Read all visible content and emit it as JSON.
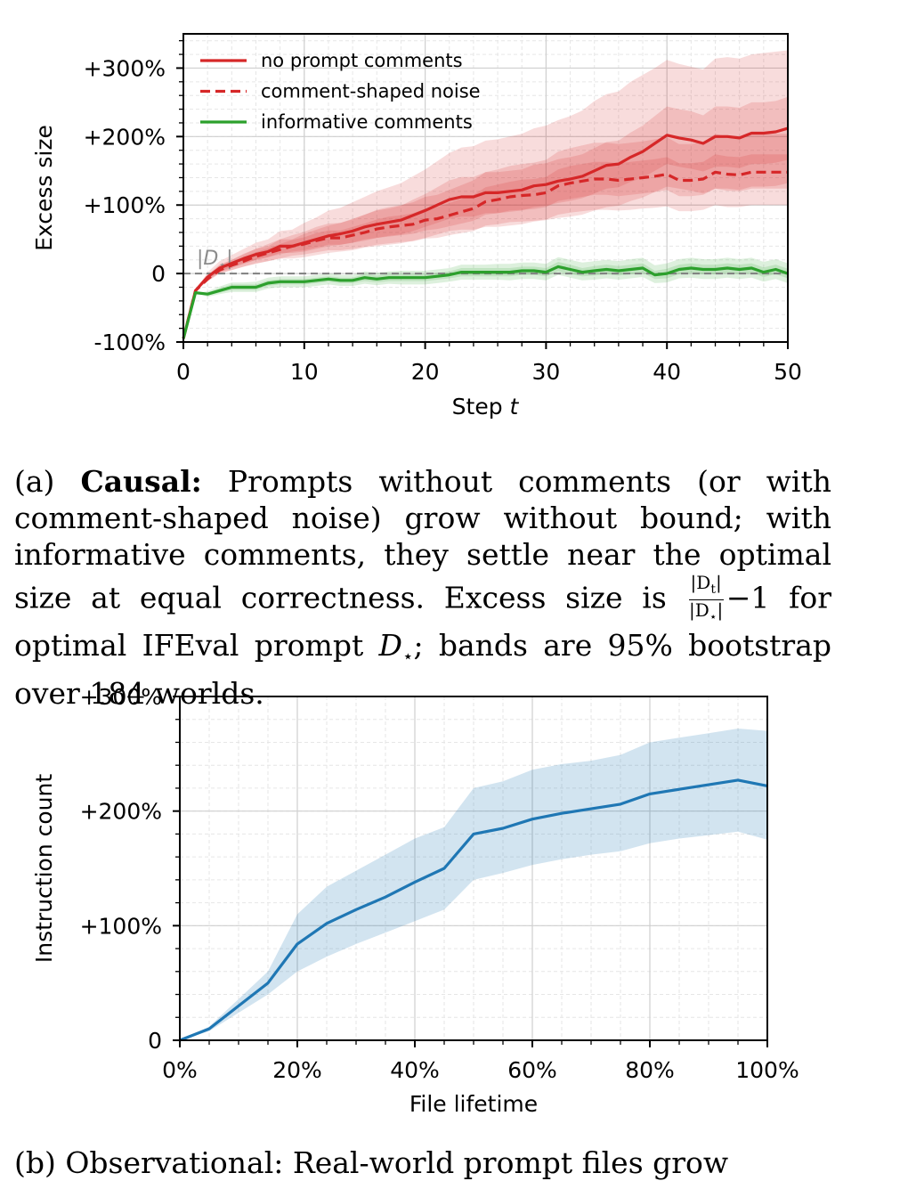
{
  "chart_data": [
    {
      "type": "line",
      "xlabel": "Step",
      "xlabel_var": "t",
      "ylabel": "Excess size",
      "xlim": [
        0,
        50
      ],
      "ylim": [
        -100,
        350
      ],
      "x_ticks": [
        0,
        10,
        20,
        30,
        40,
        50
      ],
      "x_tick_labels": [
        "0",
        "10",
        "20",
        "30",
        "40",
        "50"
      ],
      "y_ticks": [
        -100,
        0,
        100,
        200,
        300
      ],
      "y_tick_labels": [
        "-100%",
        "0",
        "+100%",
        "+200%",
        "+300%"
      ],
      "grid": true,
      "legend_position": "top-left",
      "reference_line": {
        "y": 0,
        "label_text": "|D",
        "label_sub": "⋆",
        "label_close": "|"
      },
      "x": [
        0,
        1,
        2,
        3,
        4,
        5,
        6,
        7,
        8,
        9,
        10,
        11,
        12,
        13,
        14,
        15,
        16,
        17,
        18,
        19,
        20,
        21,
        22,
        23,
        24,
        25,
        26,
        27,
        28,
        29,
        30,
        31,
        32,
        33,
        34,
        35,
        36,
        37,
        38,
        39,
        40,
        41,
        42,
        43,
        44,
        45,
        46,
        47,
        48,
        49,
        50
      ],
      "series": [
        {
          "name": "no prompt comments",
          "color": "#d62728",
          "style": "solid",
          "values": [
            -95,
            -25,
            -5,
            8,
            15,
            22,
            28,
            32,
            40,
            40,
            45,
            50,
            55,
            58,
            62,
            68,
            72,
            75,
            78,
            85,
            92,
            100,
            108,
            112,
            112,
            118,
            118,
            120,
            122,
            128,
            130,
            135,
            138,
            142,
            150,
            158,
            160,
            170,
            178,
            190,
            202,
            198,
            195,
            190,
            200,
            200,
            198,
            205,
            205,
            207,
            212
          ],
          "band_inner": [
            [
              -95,
              -25,
              -8,
              3,
              10,
              15,
              20,
              24,
              30,
              30,
              32,
              36,
              40,
              42,
              45,
              50,
              52,
              55,
              57,
              62,
              68,
              74,
              80,
              83,
              83,
              88,
              88,
              90,
              92,
              97,
              99,
              103,
              106,
              110,
              117,
              124,
              126,
              134,
              140,
              150,
              160,
              156,
              153,
              149,
              156,
              156,
              154,
              160,
              160,
              162,
              166
            ],
            [
              -95,
              -25,
              -2,
              13,
              20,
              29,
              36,
              40,
              50,
              50,
              58,
              64,
              70,
              74,
              79,
              86,
              92,
              95,
              99,
              108,
              116,
              126,
              136,
              141,
              141,
              148,
              148,
              150,
              152,
              159,
              161,
              167,
              170,
              174,
              183,
              192,
              194,
              206,
              216,
              230,
              244,
              240,
              237,
              231,
              244,
              244,
              242,
              250,
              250,
              252,
              258
            ]
          ],
          "band_outer": [
            [
              -95,
              -25,
              -10,
              0,
              5,
              10,
              14,
              18,
              22,
              22,
              24,
              27,
              30,
              32,
              34,
              38,
              40,
              42,
              44,
              48,
              52,
              57,
              62,
              64,
              64,
              68,
              68,
              70,
              72,
              76,
              78,
              81,
              83,
              86,
              92,
              97,
              99,
              106,
              111,
              119,
              127,
              124,
              121,
              117,
              124,
              124,
              122,
              127,
              127,
              128,
              132
            ],
            [
              -95,
              -25,
              2,
              18,
              27,
              36,
              45,
              50,
              62,
              64,
              74,
              82,
              92,
              96,
              104,
              112,
              120,
              126,
              132,
              142,
              152,
              164,
              176,
              184,
              186,
              194,
              196,
              200,
              204,
              212,
              216,
              224,
              230,
              238,
              252,
              262,
              266,
              280,
              290,
              300,
              312,
              306,
              302,
              298,
              314,
              316,
              314,
              320,
              322,
              324,
              326
            ]
          ]
        },
        {
          "name": "comment-shaped noise",
          "color": "#d62728",
          "style": "dashed",
          "values": [
            -95,
            -25,
            -8,
            5,
            12,
            18,
            25,
            30,
            35,
            40,
            43,
            48,
            52,
            52,
            56,
            60,
            65,
            68,
            70,
            72,
            78,
            80,
            85,
            90,
            95,
            105,
            108,
            112,
            114,
            115,
            118,
            128,
            132,
            135,
            138,
            138,
            136,
            138,
            140,
            142,
            145,
            136,
            136,
            138,
            148,
            145,
            144,
            148,
            148,
            148,
            148
          ],
          "band_inner": [
            [
              -95,
              -25,
              -10,
              2,
              8,
              14,
              20,
              24,
              28,
              32,
              34,
              38,
              42,
              42,
              45,
              48,
              52,
              54,
              56,
              58,
              63,
              65,
              69,
              73,
              77,
              86,
              88,
              92,
              93,
              94,
              97,
              106,
              109,
              112,
              115,
              115,
              113,
              115,
              117,
              119,
              122,
              113,
              113,
              115,
              124,
              121,
              120,
              124,
              124,
              124,
              124
            ],
            [
              -95,
              -25,
              -5,
              9,
              17,
              23,
              31,
              37,
              43,
              49,
              53,
              59,
              63,
              63,
              68,
              73,
              79,
              83,
              85,
              88,
              95,
              97,
              103,
              109,
              115,
              126,
              130,
              134,
              137,
              138,
              141,
              152,
              157,
              160,
              163,
              163,
              161,
              163,
              165,
              167,
              170,
              161,
              161,
              163,
              174,
              171,
              170,
              174,
              174,
              174,
              174
            ]
          ],
          "band_outer": [
            [
              -95,
              -25,
              -12,
              0,
              5,
              10,
              15,
              18,
              22,
              26,
              28,
              31,
              34,
              34,
              36,
              39,
              42,
              44,
              46,
              47,
              51,
              52,
              56,
              59,
              62,
              70,
              72,
              75,
              76,
              77,
              79,
              86,
              89,
              91,
              93,
              93,
              92,
              93,
              95,
              96,
              98,
              91,
              91,
              93,
              100,
              97,
              97,
              100,
              100,
              100,
              100
            ],
            [
              -95,
              -25,
              -3,
              12,
              20,
              28,
              36,
              43,
              50,
              56,
              61,
              68,
              73,
              74,
              80,
              86,
              93,
              97,
              100,
              104,
              112,
              115,
              122,
              129,
              136,
              148,
              152,
              157,
              160,
              162,
              166,
              178,
              183,
              187,
              191,
              191,
              189,
              191,
              193,
              196,
              199,
              189,
              189,
              192,
              204,
              200,
              199,
              204,
              204,
              204,
              204
            ]
          ]
        },
        {
          "name": "informative comments",
          "color": "#2ca02c",
          "style": "solid",
          "values": [
            -95,
            -28,
            -30,
            -25,
            -20,
            -20,
            -20,
            -14,
            -12,
            -12,
            -12,
            -10,
            -8,
            -10,
            -10,
            -6,
            -8,
            -6,
            -6,
            -6,
            -6,
            -4,
            -2,
            2,
            2,
            2,
            2,
            2,
            4,
            4,
            2,
            10,
            6,
            2,
            4,
            6,
            4,
            6,
            8,
            -2,
            0,
            6,
            8,
            6,
            6,
            8,
            6,
            8,
            2,
            6,
            0
          ],
          "band_inner": [
            [
              -95,
              -28,
              -32,
              -28,
              -24,
              -24,
              -24,
              -18,
              -16,
              -16,
              -16,
              -14,
              -12,
              -14,
              -14,
              -11,
              -13,
              -11,
              -11,
              -11,
              -11,
              -9,
              -7,
              -4,
              -4,
              -4,
              -4,
              -4,
              -2,
              -2,
              -4,
              3,
              -1,
              -4,
              -3,
              -1,
              -3,
              -1,
              1,
              -8,
              -7,
              -1,
              1,
              -1,
              -1,
              1,
              -1,
              1,
              -5,
              -1,
              -7
            ],
            [
              -95,
              -28,
              -28,
              -22,
              -16,
              -16,
              -16,
              -10,
              -8,
              -8,
              -8,
              -6,
              -4,
              -6,
              -6,
              -1,
              -3,
              -1,
              -1,
              -1,
              -1,
              1,
              3,
              8,
              8,
              8,
              8,
              8,
              10,
              10,
              8,
              17,
              13,
              8,
              11,
              13,
              11,
              13,
              15,
              4,
              7,
              13,
              15,
              13,
              13,
              15,
              13,
              15,
              9,
              13,
              7
            ]
          ],
          "band_outer": [
            [
              -95,
              -28,
              -34,
              -30,
              -27,
              -27,
              -27,
              -22,
              -20,
              -20,
              -20,
              -18,
              -16,
              -18,
              -18,
              -15,
              -17,
              -15,
              -16,
              -16,
              -16,
              -14,
              -12,
              -9,
              -9,
              -9,
              -9,
              -10,
              -8,
              -8,
              -10,
              -2,
              -6,
              -10,
              -9,
              -7,
              -9,
              -7,
              -5,
              -14,
              -13,
              -7,
              -6,
              -8,
              -8,
              -6,
              -8,
              -6,
              -12,
              -8,
              -14
            ],
            [
              -95,
              -28,
              -26,
              -19,
              -13,
              -13,
              -12,
              -6,
              -4,
              -4,
              -4,
              -2,
              0,
              -2,
              -2,
              3,
              1,
              3,
              4,
              4,
              4,
              6,
              8,
              13,
              13,
              13,
              14,
              14,
              16,
              16,
              14,
              24,
              20,
              16,
              18,
              20,
              18,
              21,
              23,
              12,
              15,
              21,
              23,
              21,
              21,
              23,
              21,
              23,
              17,
              21,
              15
            ]
          ]
        }
      ]
    },
    {
      "type": "line",
      "xlabel": "File lifetime",
      "ylabel": "Instruction count",
      "xlim": [
        0,
        100
      ],
      "ylim": [
        0,
        300
      ],
      "x_ticks": [
        0,
        20,
        40,
        60,
        80,
        100
      ],
      "x_tick_labels": [
        "0%",
        "20%",
        "40%",
        "60%",
        "80%",
        "100%"
      ],
      "y_ticks": [
        0,
        100,
        200,
        300
      ],
      "y_tick_labels": [
        "0",
        "+100%",
        "+200%",
        "+300%"
      ],
      "grid": true,
      "x": [
        0,
        5,
        10,
        15,
        20,
        25,
        30,
        35,
        40,
        45,
        50,
        55,
        60,
        65,
        70,
        75,
        80,
        85,
        90,
        95,
        100
      ],
      "series": [
        {
          "color": "#1f77b4",
          "values": [
            0,
            10,
            30,
            50,
            84,
            102,
            114,
            125,
            138,
            150,
            180,
            185,
            193,
            198,
            202,
            206,
            215,
            219,
            223,
            227,
            222
          ],
          "band": [
            [
              0,
              8,
              24,
              40,
              60,
              73,
              84,
              94,
              104,
              114,
              140,
              146,
              153,
              158,
              162,
              165,
              172,
              176,
              179,
              182,
              175
            ],
            [
              0,
              12,
              36,
              60,
              110,
              134,
              148,
              162,
              176,
              186,
              220,
              226,
              236,
              241,
              244,
              249,
              260,
              264,
              268,
              272,
              270
            ]
          ]
        }
      ]
    }
  ],
  "captions": {
    "a": {
      "tag": "(a) ",
      "bold": "Causal:",
      "text1": " Prompts without comments (or with comment-shaped noise) grow without bound; with informative comments, they settle near the optimal size at equal correctness. Excess size is ",
      "frac_num_pre": "|D",
      "frac_num_sub": "t",
      "frac_num_post": "|",
      "frac_den_pre": "|D",
      "frac_den_sub": "⋆",
      "frac_den_post": "|",
      "minus_one": "−1",
      "text2": " for optimal IFEval prompt ",
      "var_D": "D",
      "var_sub": "⋆",
      "text3": "; bands are 95% bootstrap over 184 worlds."
    },
    "b": {
      "fragment": "(b) Observational: Real-world prompt files grow"
    }
  }
}
